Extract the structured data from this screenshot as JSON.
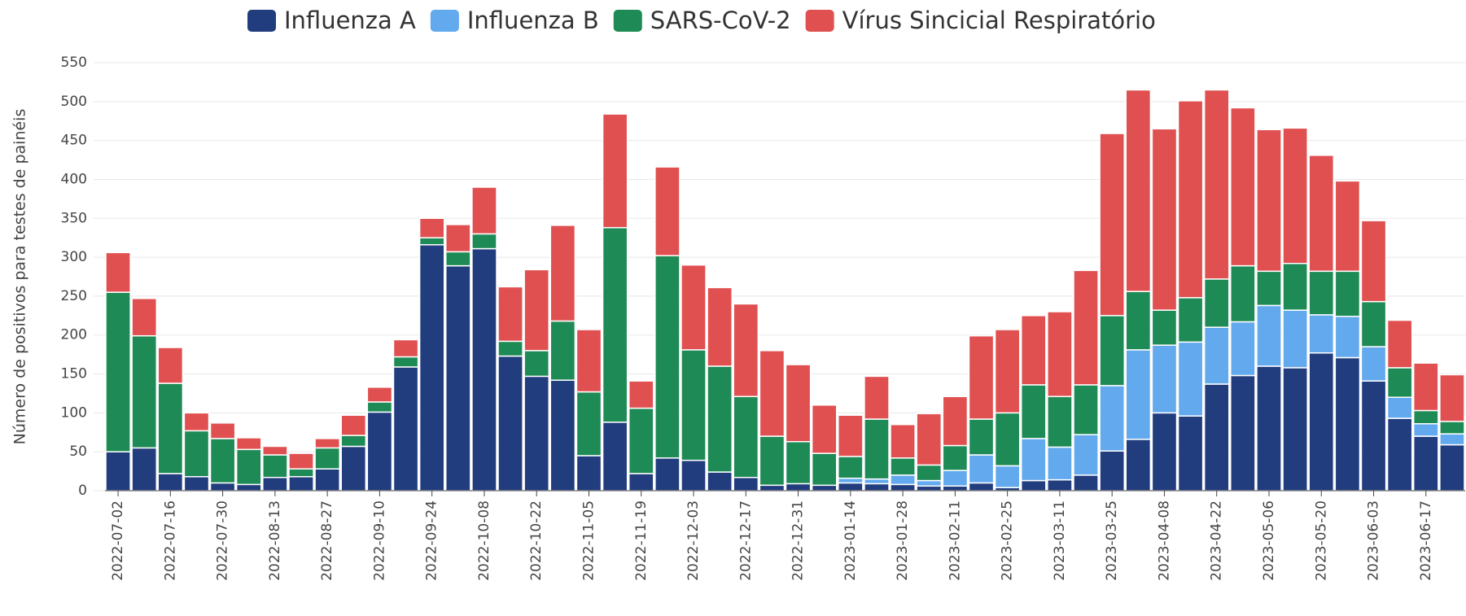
{
  "chart_data": {
    "type": "stacked_bar",
    "y_label": "Número de positivos para testes de painéis",
    "categories": [
      "2022-07-02",
      null,
      "2022-07-16",
      null,
      "2022-07-30",
      null,
      "2022-08-13",
      null,
      "2022-08-27",
      null,
      "2022-09-10",
      null,
      "2022-09-24",
      null,
      "2022-10-08",
      null,
      "2022-10-22",
      null,
      "2022-11-05",
      null,
      "2022-11-19",
      null,
      "2022-12-03",
      null,
      "2022-12-17",
      null,
      "2022-12-31",
      null,
      "2023-01-14",
      null,
      "2023-01-28",
      null,
      "2023-02-11",
      null,
      "2023-02-25",
      null,
      "2023-03-11",
      null,
      "2023-03-25",
      null,
      "2023-04-08",
      null,
      "2023-04-22",
      null,
      "2023-05-06",
      null,
      "2023-05-20",
      null,
      "2023-06-03",
      null,
      "2023-06-17",
      null
    ],
    "series": [
      {
        "name": "Influenza A",
        "color": "#213d7e",
        "values": [
          50,
          55,
          22,
          18,
          10,
          8,
          17,
          18,
          28,
          57,
          101,
          159,
          316,
          289,
          311,
          173,
          147,
          142,
          45,
          88,
          22,
          42,
          39,
          24,
          17,
          7,
          9,
          7,
          10,
          9,
          8,
          6,
          6,
          10,
          4,
          13,
          14,
          20,
          51,
          66,
          100,
          96,
          137,
          148,
          160,
          158,
          177,
          171,
          141,
          93,
          70,
          59
        ]
      },
      {
        "name": "Influenza B",
        "color": "#62a9ee",
        "values": [
          0,
          0,
          0,
          0,
          0,
          0,
          0,
          0,
          0,
          0,
          0,
          0,
          0,
          0,
          0,
          0,
          0,
          0,
          0,
          0,
          0,
          0,
          0,
          0,
          0,
          0,
          0,
          0,
          6,
          6,
          12,
          7,
          20,
          36,
          28,
          54,
          42,
          52,
          84,
          115,
          87,
          95,
          73,
          69,
          78,
          74,
          49,
          53,
          44,
          27,
          16,
          14
        ]
      },
      {
        "name": "SARS-CoV-2",
        "color": "#1e8a55",
        "values": [
          205,
          144,
          116,
          59,
          57,
          45,
          29,
          10,
          27,
          14,
          13,
          13,
          9,
          18,
          19,
          19,
          33,
          76,
          82,
          250,
          84,
          260,
          142,
          136,
          104,
          63,
          54,
          41,
          28,
          77,
          22,
          20,
          32,
          46,
          68,
          69,
          65,
          64,
          90,
          75,
          45,
          57,
          62,
          72,
          44,
          60,
          56,
          58,
          58,
          38,
          17,
          16
        ]
      },
      {
        "name": "Vírus Sincicial Respiratório",
        "color": "#e05050",
        "values": [
          51,
          48,
          46,
          23,
          20,
          15,
          11,
          20,
          12,
          26,
          19,
          22,
          25,
          35,
          60,
          70,
          104,
          123,
          80,
          146,
          35,
          114,
          109,
          101,
          119,
          110,
          99,
          62,
          53,
          55,
          43,
          66,
          63,
          107,
          107,
          89,
          109,
          147,
          234,
          259,
          233,
          253,
          243,
          203,
          182,
          174,
          149,
          116,
          104,
          61,
          61,
          60
        ]
      }
    ],
    "ylim": [
      0,
      550
    ],
    "yticks": [
      0,
      50,
      100,
      150,
      200,
      250,
      300,
      350,
      400,
      450,
      500,
      550
    ],
    "grid": true
  }
}
